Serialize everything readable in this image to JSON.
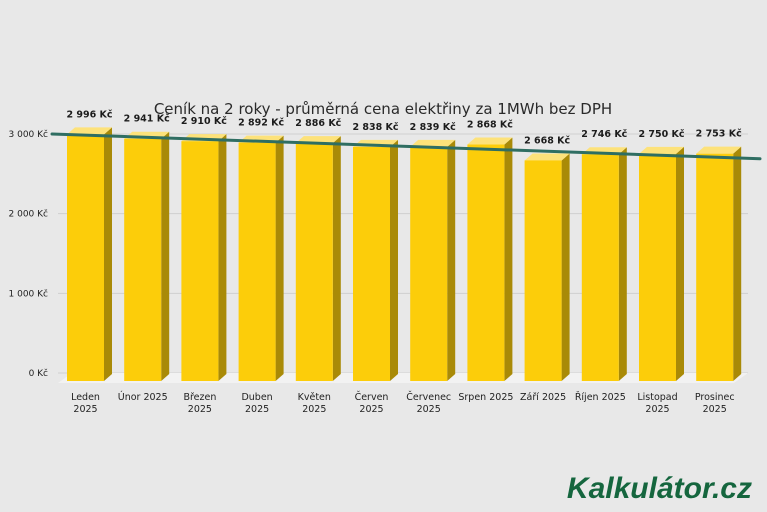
{
  "chart_data": {
    "type": "bar",
    "title": "Ceník na 2 roky - průměrná cena elektřiny za 1MWh bez DPH",
    "xlabel": "",
    "ylabel": "",
    "categories": [
      [
        "Leden",
        "2025"
      ],
      [
        "Únor 2025"
      ],
      [
        "Březen",
        "2025"
      ],
      [
        "Duben",
        "2025"
      ],
      [
        "Květen",
        "2025"
      ],
      [
        "Červen",
        "2025"
      ],
      [
        "Červenec",
        "2025"
      ],
      [
        "Srpen 2025"
      ],
      [
        "Září 2025"
      ],
      [
        "Říjen 2025"
      ],
      [
        "Listopad",
        "2025"
      ],
      [
        "Prosinec",
        "2025"
      ]
    ],
    "values": [
      2996,
      2941,
      2910,
      2892,
      2886,
      2838,
      2839,
      2868,
      2668,
      2746,
      2750,
      2753
    ],
    "value_labels": [
      "2 996 Kč",
      "2 941 Kč",
      "2 910 Kč",
      "2 892 Kč",
      "2 886 Kč",
      "2 838 Kč",
      "2 839 Kč",
      "2 868 Kč",
      "2 668 Kč",
      "2 746 Kč",
      "2 750 Kč",
      "2 753 Kč"
    ],
    "ylim": [
      0,
      3000
    ],
    "yticks": [
      0,
      1000,
      2000,
      3000
    ],
    "ytick_labels": [
      "0 Kč",
      "1 000 Kč",
      "2 000 Kč",
      "3 000 Kč"
    ],
    "trendline": {
      "start": 3000,
      "end": 2690
    },
    "grid": true,
    "legend": "none",
    "colors": {
      "bar_front": "#fccd0a",
      "bar_side": "#a98a07",
      "bar_top": "#fde27a",
      "trend": "#2f6e62",
      "grid": "#cfcfcf",
      "background": "#e8e8e8",
      "floor": "#f2f2f2"
    }
  },
  "brand": {
    "logo_text": "Kalkulátor.cz",
    "color": "#15663e"
  }
}
